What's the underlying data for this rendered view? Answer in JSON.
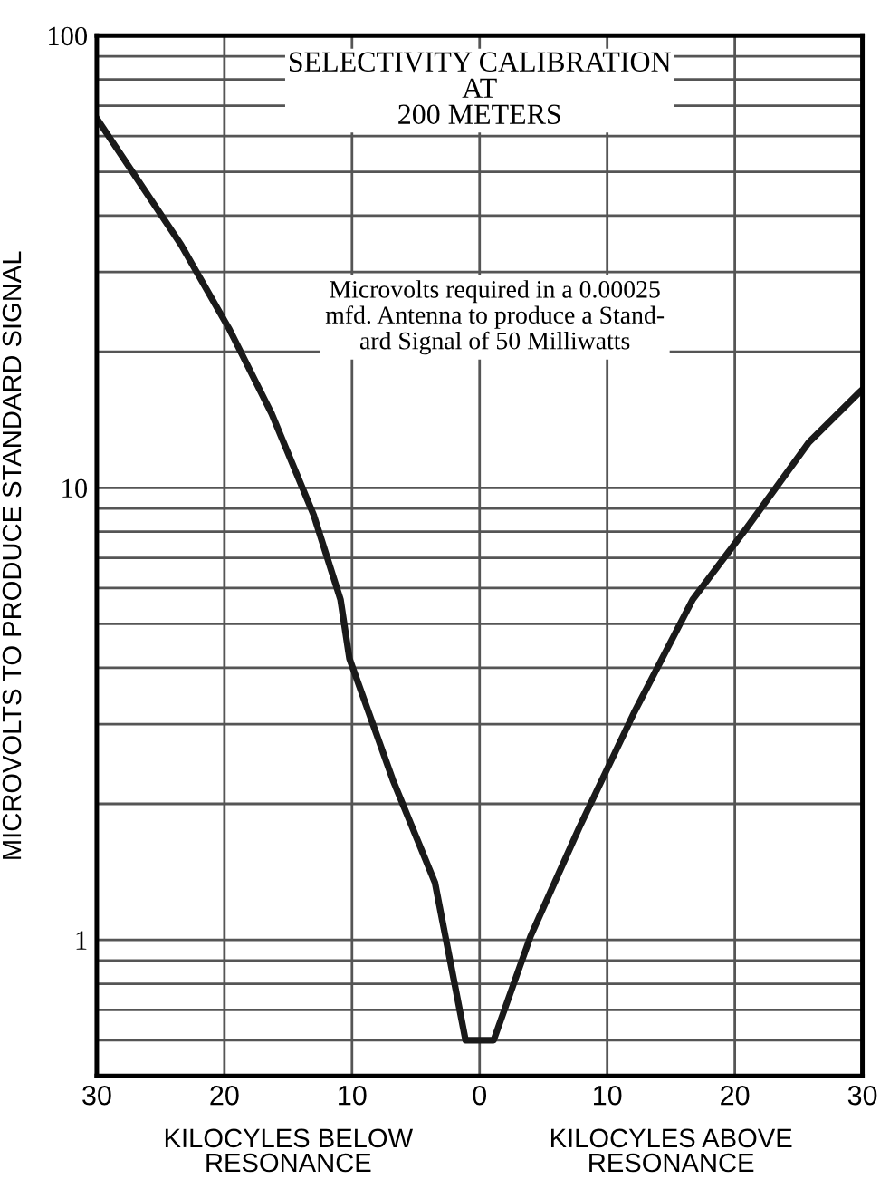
{
  "chart_data": {
    "type": "line",
    "title": "SELECTIVITY CALIBRATION\nAT\n200 METERS",
    "ylabel": "MICROVOLTS TO PRODUCE STANDARD SIGNAL",
    "annotations": [
      "Microvolts required in a 0.00025\nmfd. Antenna to produce a Stand-\nard Signal of 50 Milliwatts",
      "KILOCYLES BELOW\nRESONANCE",
      "KILOCYLES ABOVE\nRESONANCE"
    ],
    "series": [
      {
        "color": "#1a1a1a",
        "x": [
          -30,
          -23.4,
          -19.6,
          -16.3,
          -13.0,
          -10.9,
          -10.2,
          -6.8,
          -3.5,
          -1.1,
          1.1,
          4.0,
          7.8,
          12.1,
          16.7,
          21.0,
          25.8,
          29.8,
          30
        ],
        "values": [
          65.6,
          34.5,
          22.4,
          14.6,
          8.7,
          5.66,
          4.19,
          2.26,
          1.34,
          0.6,
          0.6,
          1.02,
          1.77,
          3.18,
          5.66,
          8.2,
          12.6,
          16.3,
          16.5
        ]
      }
    ],
    "log": "y",
    "xlim": [
      -30,
      30
    ],
    "ylim": [
      0.5,
      100
    ],
    "xticks": [
      {
        "value": -30,
        "label": "30"
      },
      {
        "value": -20,
        "label": "20"
      },
      {
        "value": -10,
        "label": "10"
      },
      0,
      10,
      20,
      30
    ],
    "yticks": [
      {
        "value": 0.6,
        "label": null
      },
      {
        "value": 0.7,
        "label": null
      },
      {
        "value": 0.8,
        "label": null
      },
      {
        "value": 0.9,
        "label": null
      },
      1,
      {
        "value": 2,
        "label": null
      },
      {
        "value": 3,
        "label": null
      },
      {
        "value": 4,
        "label": null
      },
      {
        "value": 5,
        "label": null
      },
      {
        "value": 6,
        "label": null
      },
      {
        "value": 7,
        "label": null
      },
      {
        "value": 8,
        "label": null
      },
      {
        "value": 9,
        "label": null
      },
      10,
      {
        "value": 20,
        "label": null
      },
      {
        "value": 30,
        "label": null
      },
      {
        "value": 40,
        "label": null
      },
      {
        "value": 50,
        "label": null
      },
      {
        "value": 60,
        "label": null
      },
      {
        "value": 70,
        "label": null
      },
      {
        "value": 80,
        "label": null
      },
      {
        "value": 90,
        "label": null
      },
      100
    ],
    "grid": true,
    "marker": "none",
    "line_style": "solid"
  }
}
